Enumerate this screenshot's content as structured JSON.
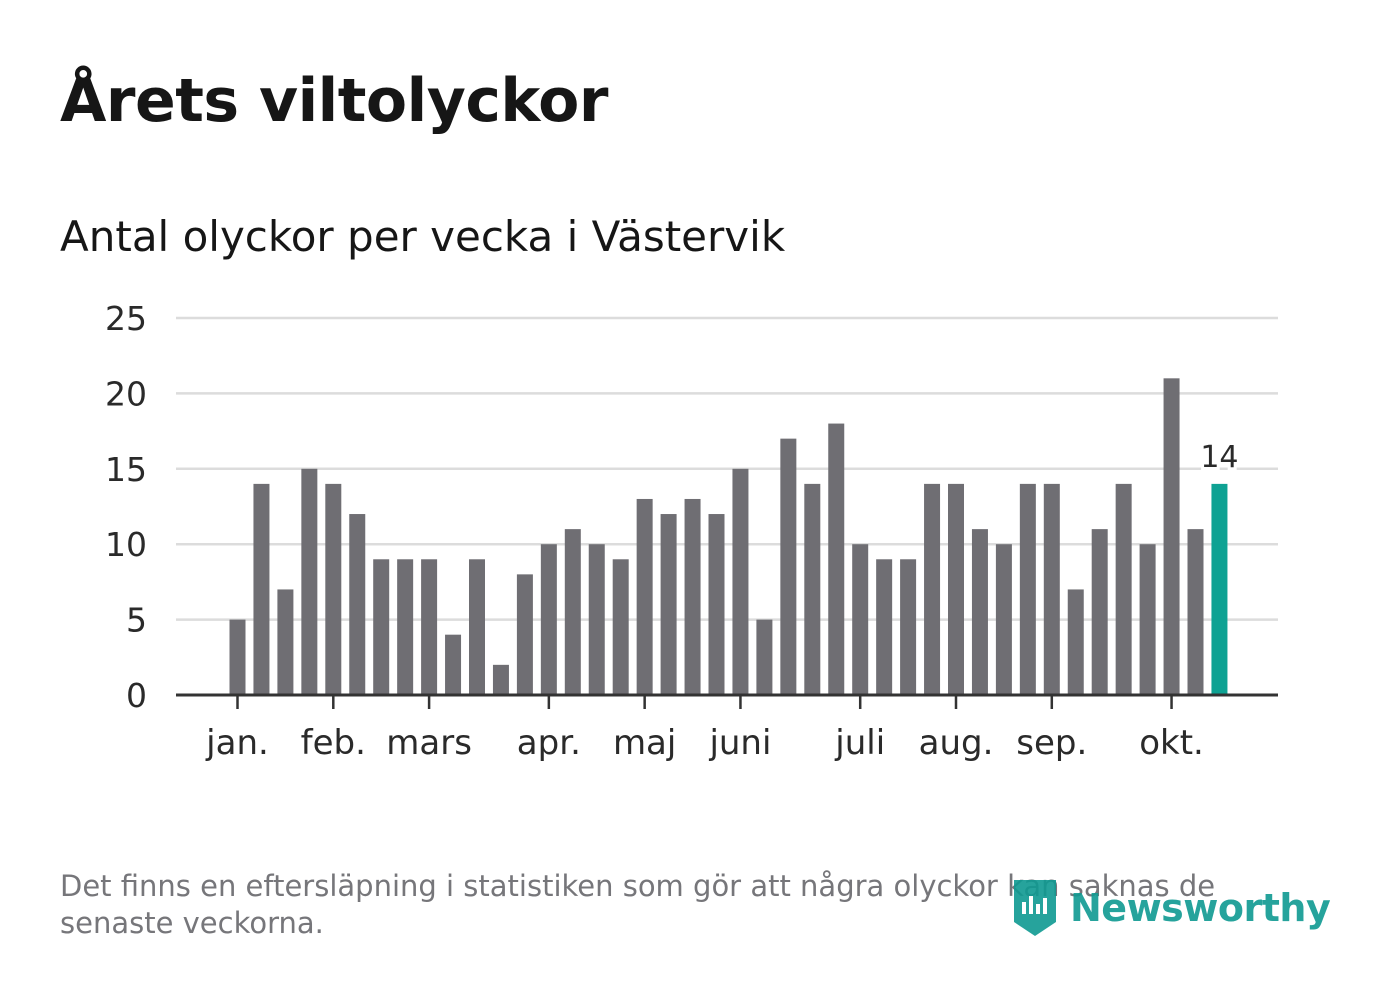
{
  "title": "Årets viltolyckor",
  "subtitle": "Antal olyckor per vecka i Västervik",
  "footnote": "Det finns en eftersläpning i statistiken som gör att några olyckor kan saknas de senaste veckorna.",
  "brand": {
    "name": "Newsworthy",
    "icon": "newsworthy-logo-icon"
  },
  "colors": {
    "bar": "#6f6e73",
    "highlight": "#0ea293",
    "grid": "#dcdcdc",
    "axis": "#333333",
    "text": "#161616",
    "muted": "#76767a",
    "brand": "#0f9a92"
  },
  "chart_data": {
    "type": "bar",
    "title": "Årets viltolyckor",
    "subtitle": "Antal olyckor per vecka i Västervik",
    "xlabel": "",
    "ylabel": "",
    "ylim": [
      0,
      25
    ],
    "yticks": [
      0,
      5,
      10,
      15,
      20,
      25
    ],
    "grid": true,
    "weeks": [
      1,
      2,
      3,
      4,
      5,
      6,
      7,
      8,
      9,
      10,
      11,
      12,
      13,
      14,
      15,
      16,
      17,
      18,
      19,
      20,
      21,
      22,
      23,
      24,
      25,
      26,
      27,
      28,
      29,
      30,
      31,
      32,
      33,
      34,
      35,
      36,
      37,
      38,
      39,
      40,
      41,
      42
    ],
    "values": [
      5,
      14,
      7,
      15,
      14,
      12,
      9,
      9,
      9,
      4,
      9,
      2,
      8,
      10,
      11,
      10,
      9,
      13,
      12,
      13,
      12,
      15,
      5,
      17,
      14,
      18,
      10,
      9,
      9,
      14,
      14,
      11,
      10,
      14,
      14,
      7,
      11,
      14,
      10,
      21,
      11,
      14
    ],
    "highlight_index": 41,
    "highlight_label": "14",
    "month_ticks": [
      {
        "label": "jan.",
        "position": 1.0
      },
      {
        "label": "feb.",
        "position": 5.0
      },
      {
        "label": "mars",
        "position": 9.0
      },
      {
        "label": "apr.",
        "position": 14.0
      },
      {
        "label": "maj",
        "position": 18.0
      },
      {
        "label": "juni",
        "position": 22.0
      },
      {
        "label": "juli",
        "position": 27.0
      },
      {
        "label": "aug.",
        "position": 31.0
      },
      {
        "label": "sep.",
        "position": 35.0
      },
      {
        "label": "okt.",
        "position": 40.0
      }
    ]
  }
}
